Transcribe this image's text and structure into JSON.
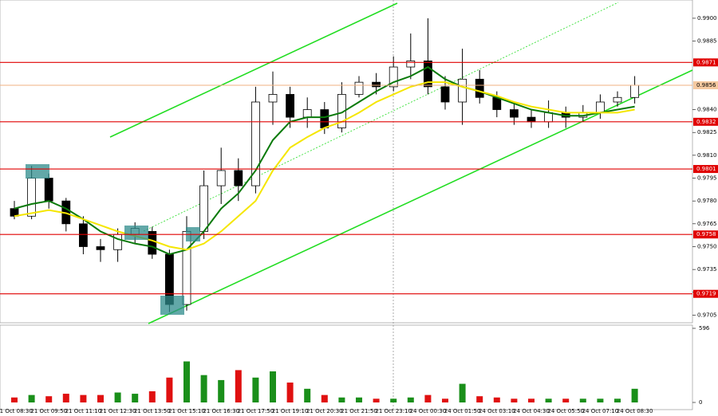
{
  "chart_data": {
    "type": "candlestick",
    "categories": [
      "21 Oct 08:30",
      null,
      "21 Oct 09:50",
      null,
      "21 Oct 11:10",
      null,
      "21 Oct 12:30",
      null,
      "21 Oct 13:50",
      null,
      "21 Oct 15:10",
      null,
      "21 Oct 16:30",
      null,
      "21 Oct 17:50",
      null,
      "21 Oct 19:10",
      null,
      "21 Oct 20:30",
      null,
      "21 Oct 21:50",
      null,
      "21 Oct 23:10",
      null,
      "24 Oct 00:30",
      null,
      "24 Oct 01:50",
      null,
      "24 Oct 03:10",
      null,
      "24 Oct 04:30",
      null,
      "24 Oct 05:50",
      null,
      "24 Oct 07:10",
      null,
      "24 Oct 08:30"
    ],
    "open": [
      0.9775,
      0.977,
      0.9795,
      0.978,
      0.9765,
      0.975,
      0.9748,
      0.9758,
      0.976,
      0.9745,
      0.9712,
      0.976,
      0.979,
      0.98,
      0.979,
      0.9845,
      0.985,
      0.9835,
      0.984,
      0.9828,
      0.985,
      0.9858,
      0.9855,
      0.9868,
      0.9872,
      0.9855,
      0.9845,
      0.986,
      0.9848,
      0.984,
      0.9835,
      0.9832,
      0.9838,
      0.9835,
      0.9838,
      0.9845,
      0.9848
    ],
    "high": [
      0.978,
      0.9803,
      0.9798,
      0.9782,
      0.977,
      0.9755,
      0.9762,
      0.9766,
      0.9763,
      0.9748,
      0.977,
      0.98,
      0.9815,
      0.9808,
      0.9855,
      0.9865,
      0.9855,
      0.9848,
      0.9845,
      0.9858,
      0.9862,
      0.9864,
      0.9875,
      0.989,
      0.99,
      0.9862,
      0.988,
      0.9866,
      0.9852,
      0.9844,
      0.984,
      0.9846,
      0.9842,
      0.9843,
      0.985,
      0.9852,
      0.9862
    ],
    "low": [
      0.9768,
      0.9768,
      0.9775,
      0.976,
      0.9745,
      0.974,
      0.974,
      0.9752,
      0.9742,
      0.9707,
      0.9708,
      0.9755,
      0.9778,
      0.978,
      0.9785,
      0.983,
      0.9828,
      0.9828,
      0.9824,
      0.9825,
      0.9848,
      0.985,
      0.9852,
      0.986,
      0.985,
      0.984,
      0.983,
      0.9844,
      0.9835,
      0.983,
      0.9828,
      0.9828,
      0.9828,
      0.9832,
      0.9834,
      0.9842,
      0.9844
    ],
    "close": [
      0.977,
      0.9795,
      0.978,
      0.9765,
      0.975,
      0.9748,
      0.9758,
      0.9762,
      0.9745,
      0.9712,
      0.976,
      0.979,
      0.98,
      0.979,
      0.9845,
      0.985,
      0.9835,
      0.984,
      0.9828,
      0.985,
      0.9858,
      0.9855,
      0.9868,
      0.9872,
      0.9855,
      0.9845,
      0.986,
      0.9848,
      0.984,
      0.9835,
      0.9832,
      0.9838,
      0.9835,
      0.9838,
      0.9845,
      0.9848,
      0.9856
    ],
    "up_color": "#1a8f1a",
    "down_color": "#e01010",
    "moving_averages": [
      {
        "color": "#0a7a0a",
        "values": [
          0.9775,
          0.9778,
          0.978,
          0.9775,
          0.9768,
          0.976,
          0.9755,
          0.9752,
          0.975,
          0.9745,
          0.9748,
          0.976,
          0.9775,
          0.9785,
          0.98,
          0.982,
          0.9832,
          0.9835,
          0.9835,
          0.9838,
          0.9845,
          0.9852,
          0.9858,
          0.9862,
          0.9868,
          0.986,
          0.9855,
          0.9852,
          0.9848,
          0.9844,
          0.984,
          0.9838,
          0.9836,
          0.9836,
          0.9838,
          0.984,
          0.9842
        ]
      },
      {
        "color": "#f5e600",
        "values": [
          0.977,
          0.9772,
          0.9774,
          0.9772,
          0.9768,
          0.9764,
          0.976,
          0.9757,
          0.9754,
          0.975,
          0.9748,
          0.9752,
          0.976,
          0.977,
          0.978,
          0.98,
          0.9815,
          0.9822,
          0.9828,
          0.9832,
          0.9838,
          0.9845,
          0.985,
          0.9855,
          0.9858,
          0.9858,
          0.9855,
          0.9852,
          0.9849,
          0.9845,
          0.9842,
          0.984,
          0.9838,
          0.9838,
          0.9838,
          0.9838,
          0.984
        ]
      }
    ],
    "ylim": [
      0.97,
      0.9912
    ],
    "yticks": [
      {
        "value": 0.99,
        "label": "0.9900"
      },
      0.9885,
      {
        "value": 0.984,
        "label": "0.9840"
      },
      0.9825,
      {
        "value": 0.981,
        "label": "0.9810"
      },
      0.9795,
      {
        "value": 0.978,
        "label": "0.9780"
      },
      0.9765,
      {
        "value": 0.975,
        "label": "0.9750"
      },
      0.9735,
      {
        "value": 0.972,
        "label": "0.9720"
      },
      0.9705
    ],
    "levels": [
      0.9871,
      0.9832,
      0.9801,
      0.9758,
      0.9719
    ],
    "level_color": "#e00000",
    "current_price": 0.9856,
    "volume": [
      40,
      60,
      50,
      70,
      60,
      60,
      80,
      70,
      90,
      200,
      330,
      220,
      180,
      260,
      200,
      250,
      160,
      110,
      60,
      40,
      40,
      30,
      30,
      40,
      60,
      30,
      150,
      50,
      40,
      30,
      30,
      30,
      30,
      30,
      30,
      30,
      110
    ],
    "volume_lim": [
      0,
      596
    ],
    "volume_ticks": [
      0,
      596
    ]
  }
}
